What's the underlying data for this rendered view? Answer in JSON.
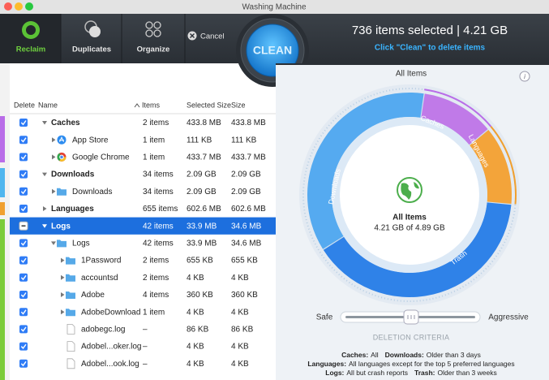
{
  "window": {
    "title": "Washing Machine"
  },
  "toolbar": {
    "tabs": [
      "Reclaim",
      "Duplicates",
      "Organize"
    ],
    "cancel": "Cancel",
    "clean": "CLEAN",
    "summary": "736 items selected | 4.21 GB",
    "hint": "Click \"Clean\" to delete items"
  },
  "table": {
    "columns": [
      "Delete",
      "Name",
      "Items",
      "Selected Size",
      "Size"
    ],
    "rows": [
      {
        "name": "Caches",
        "items": "2 items",
        "selected_size": "433.8 MB",
        "size": "433.8 MB",
        "level": 0,
        "toggle": "open",
        "state": "checked"
      },
      {
        "name": "App Store",
        "items": "1 item",
        "selected_size": "111 KB",
        "size": "111 KB",
        "level": 1,
        "toggle": "closed",
        "icon": "appstore",
        "state": "checked"
      },
      {
        "name": "Google Chrome",
        "items": "1 item",
        "selected_size": "433.7 MB",
        "size": "433.7 MB",
        "level": 1,
        "toggle": "closed",
        "icon": "chrome",
        "state": "checked"
      },
      {
        "name": "Downloads",
        "items": "34 items",
        "selected_size": "2.09 GB",
        "size": "2.09 GB",
        "level": 0,
        "toggle": "open",
        "state": "checked"
      },
      {
        "name": "Downloads",
        "items": "34 items",
        "selected_size": "2.09 GB",
        "size": "2.09 GB",
        "level": 1,
        "toggle": "closed",
        "icon": "folder",
        "state": "checked"
      },
      {
        "name": "Languages",
        "items": "655 items",
        "selected_size": "602.6 MB",
        "size": "602.6 MB",
        "level": 0,
        "toggle": "closed",
        "state": "checked"
      },
      {
        "name": "Logs",
        "items": "42 items",
        "selected_size": "33.9 MB",
        "size": "34.6 MB",
        "level": 0,
        "toggle": "open",
        "state": "mixed",
        "selected": true
      },
      {
        "name": "Logs",
        "items": "42 items",
        "selected_size": "33.9 MB",
        "size": "34.6 MB",
        "level": 1,
        "toggle": "open",
        "icon": "folder",
        "state": "checked"
      },
      {
        "name": "1Password",
        "items": "2 items",
        "selected_size": "655 KB",
        "size": "655 KB",
        "level": 2,
        "toggle": "closed",
        "icon": "folder",
        "state": "checked"
      },
      {
        "name": "accountsd",
        "items": "2 items",
        "selected_size": "4 KB",
        "size": "4 KB",
        "level": 2,
        "toggle": "closed",
        "icon": "folder",
        "state": "checked"
      },
      {
        "name": "Adobe",
        "items": "4 items",
        "selected_size": "360 KB",
        "size": "360 KB",
        "level": 2,
        "toggle": "closed",
        "icon": "folder",
        "state": "checked"
      },
      {
        "name": "AdobeDownload",
        "items": "1 item",
        "selected_size": "4 KB",
        "size": "4 KB",
        "level": 2,
        "toggle": "closed",
        "icon": "folder",
        "state": "checked"
      },
      {
        "name": "adobegc.log",
        "items": "–",
        "selected_size": "86 KB",
        "size": "86 KB",
        "level": 2,
        "icon": "file",
        "state": "checked"
      },
      {
        "name": "Adobel...oker.log",
        "items": "–",
        "selected_size": "4 KB",
        "size": "4 KB",
        "level": 2,
        "icon": "file",
        "state": "checked"
      },
      {
        "name": "Adobel...ook.log",
        "items": "–",
        "selected_size": "4 KB",
        "size": "4 KB",
        "level": 2,
        "icon": "file",
        "state": "checked"
      }
    ]
  },
  "overview": {
    "title": "All Items",
    "ring_labels": [
      "Caches",
      "Languages",
      "Trash",
      "Downloads"
    ],
    "center_title": "All Items",
    "center_size": "4.21 GB of 4.89 GB"
  },
  "criteria": {
    "min_label": "Safe",
    "max_label": "Aggressive",
    "title": "DELETION CRITERIA",
    "rules": [
      [
        {
          "label": "Caches:",
          "value": "All"
        },
        {
          "label": "Downloads:",
          "value": "Older than 3 days"
        }
      ],
      [
        {
          "label": "Languages:",
          "value": "All languages except for the top 5 preferred languages"
        }
      ],
      [
        {
          "label": "Logs:",
          "value": "All but crash reports"
        },
        {
          "label": "Trash:",
          "value": "Older than 3 weeks"
        }
      ]
    ]
  }
}
